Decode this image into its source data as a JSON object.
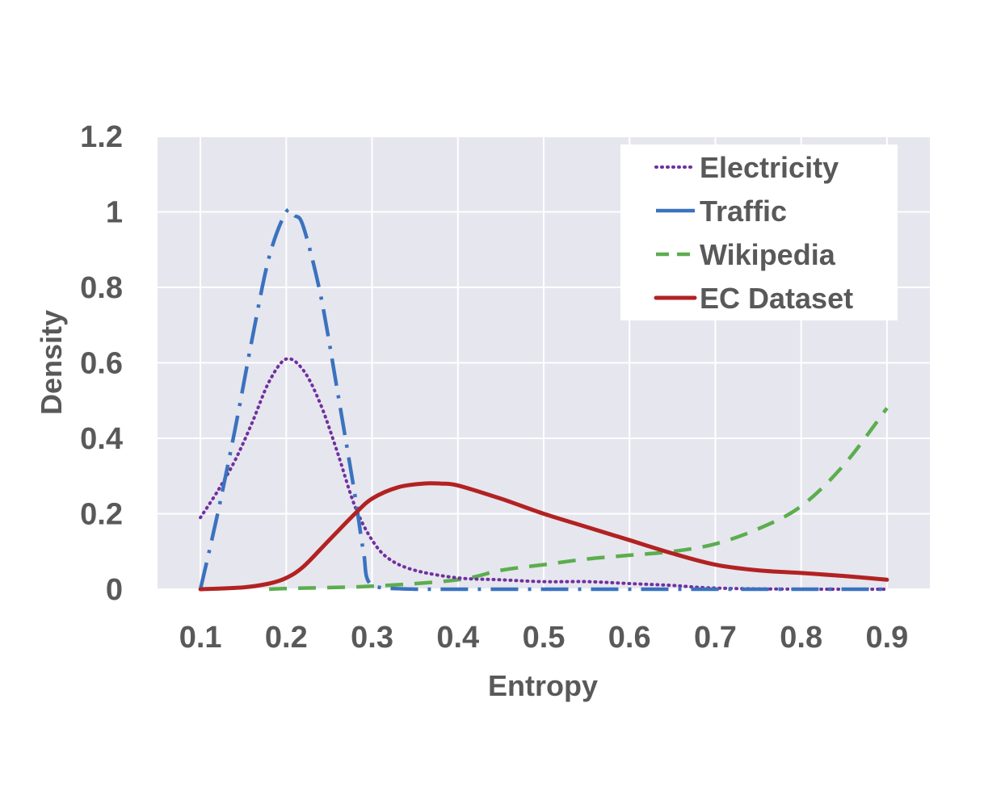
{
  "chart_data": {
    "type": "line",
    "xlabel": "Entropy",
    "ylabel": "Density",
    "xlim": [
      0.05,
      0.95
    ],
    "ylim": [
      0,
      1.2
    ],
    "x_ticks": [
      "0.1",
      "0.2",
      "0.3",
      "0.4",
      "0.5",
      "0.6",
      "0.7",
      "0.8",
      "0.9"
    ],
    "y_ticks": [
      "0",
      "0.2",
      "0.4",
      "0.6",
      "0.8",
      "1",
      "1.2"
    ],
    "grid": true,
    "legend_position": "top-right",
    "series": [
      {
        "name": "Electricity",
        "color": "#7030A0",
        "style": "dotted",
        "x": [
          0.1,
          0.12,
          0.14,
          0.16,
          0.18,
          0.2,
          0.22,
          0.24,
          0.26,
          0.28,
          0.3,
          0.32,
          0.35,
          0.4,
          0.45,
          0.5,
          0.55,
          0.6,
          0.65,
          0.7,
          0.8,
          0.9
        ],
        "y": [
          0.19,
          0.26,
          0.34,
          0.44,
          0.55,
          0.61,
          0.58,
          0.49,
          0.36,
          0.22,
          0.13,
          0.08,
          0.05,
          0.03,
          0.025,
          0.02,
          0.02,
          0.015,
          0.01,
          0.003,
          0.0,
          0.0
        ]
      },
      {
        "name": "Traffic",
        "color": "#3A72BF",
        "style": "dashdot",
        "x": [
          0.1,
          0.12,
          0.14,
          0.16,
          0.18,
          0.2,
          0.21,
          0.22,
          0.24,
          0.26,
          0.28,
          0.29,
          0.3,
          0.35,
          0.4,
          0.5,
          0.6,
          0.7,
          0.8,
          0.9
        ],
        "y": [
          0.0,
          0.2,
          0.42,
          0.66,
          0.88,
          1.0,
          0.99,
          0.96,
          0.78,
          0.52,
          0.25,
          0.1,
          0.01,
          0.0,
          0.0,
          0.0,
          0.0,
          0.0,
          0.0,
          0.0
        ]
      },
      {
        "name": "Wikipedia",
        "color": "#5BAE4E",
        "style": "dashed",
        "x": [
          0.18,
          0.2,
          0.3,
          0.4,
          0.45,
          0.5,
          0.55,
          0.6,
          0.65,
          0.7,
          0.75,
          0.8,
          0.85,
          0.9
        ],
        "y": [
          0.0,
          0.002,
          0.008,
          0.025,
          0.05,
          0.065,
          0.08,
          0.09,
          0.1,
          0.12,
          0.16,
          0.22,
          0.33,
          0.48
        ]
      },
      {
        "name": "EC Dataset",
        "color": "#B22222",
        "style": "solid",
        "x": [
          0.1,
          0.15,
          0.18,
          0.2,
          0.22,
          0.25,
          0.28,
          0.3,
          0.33,
          0.36,
          0.38,
          0.4,
          0.45,
          0.5,
          0.55,
          0.6,
          0.65,
          0.7,
          0.75,
          0.8,
          0.85,
          0.9
        ],
        "y": [
          0.0,
          0.005,
          0.015,
          0.03,
          0.06,
          0.13,
          0.2,
          0.24,
          0.27,
          0.28,
          0.28,
          0.275,
          0.24,
          0.2,
          0.165,
          0.13,
          0.095,
          0.065,
          0.05,
          0.043,
          0.035,
          0.025
        ]
      }
    ]
  }
}
